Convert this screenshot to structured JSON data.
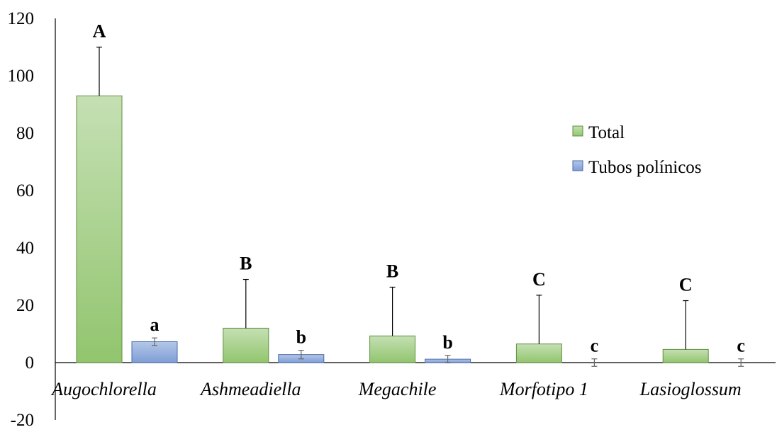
{
  "chart_data": {
    "type": "bar",
    "categories": [
      "Augochlorella",
      "Ashmeadiella",
      "Megachile",
      "Morfotipo 1",
      "Lasioglossum"
    ],
    "series": [
      {
        "name": "Total",
        "color": "#a9d18e",
        "values": [
          93,
          12,
          9.3,
          6.5,
          4.6
        ],
        "error_upper": [
          17,
          17,
          17,
          17,
          17
        ],
        "letters": [
          "A",
          "B",
          "B",
          "C",
          "C"
        ]
      },
      {
        "name": "Tubos polínicos",
        "color": "#8faadc",
        "values": [
          7.3,
          2.8,
          1.2,
          0,
          0
        ],
        "error_symmetric": [
          1.3,
          1.5,
          1.3,
          1.3,
          1.3
        ],
        "letters": [
          "a",
          "b",
          "b",
          "c",
          "c"
        ]
      }
    ],
    "yticks": [
      "120",
      "100",
      "80",
      "60",
      "40",
      "20",
      "0",
      "-20"
    ],
    "ylim": [
      -20,
      120
    ],
    "legend_position": "right",
    "xlabel": "",
    "ylabel": ""
  }
}
